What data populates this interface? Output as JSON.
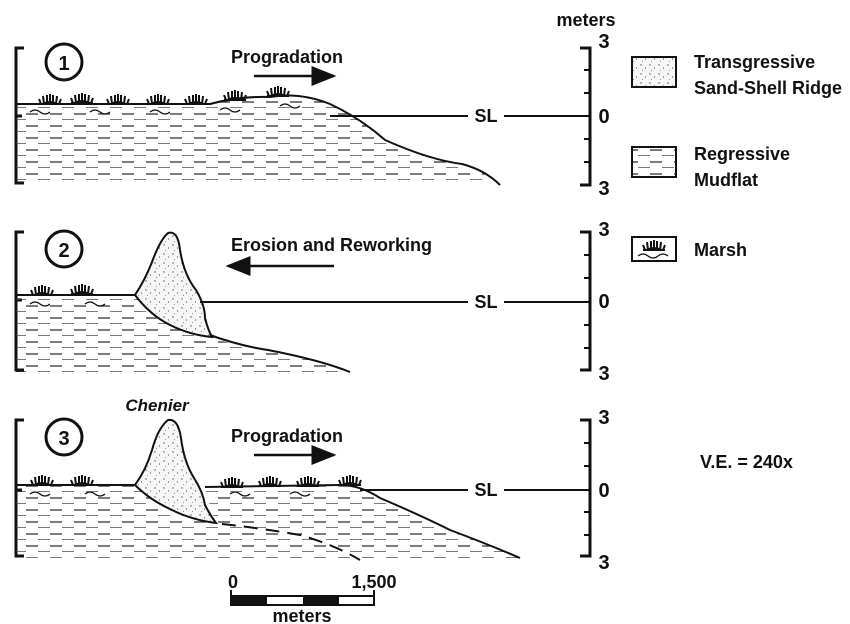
{
  "units_label": "meters",
  "panels": [
    {
      "number": "1",
      "process": "Progradation",
      "sea_level": "SL",
      "scale_top": "3",
      "scale_mid": "0",
      "scale_bottom": "3"
    },
    {
      "number": "2",
      "process": "Erosion and Reworking",
      "sea_level": "SL",
      "scale_top": "3",
      "scale_mid": "0",
      "scale_bottom": "3"
    },
    {
      "number": "3",
      "process": "Progradation",
      "feature": "Chenier",
      "sea_level": "SL",
      "scale_top": "3",
      "scale_mid": "0",
      "scale_bottom": "3"
    }
  ],
  "legend": {
    "sand_line1": "Transgressive",
    "sand_line2": "Sand-Shell Ridge",
    "mud_line1": "Regressive",
    "mud_line2": "Mudflat",
    "marsh": "Marsh"
  },
  "vertical_exaggeration": "V.E. = 240x",
  "scale_bar": {
    "start": "0",
    "end": "1,500",
    "unit": "meters"
  }
}
